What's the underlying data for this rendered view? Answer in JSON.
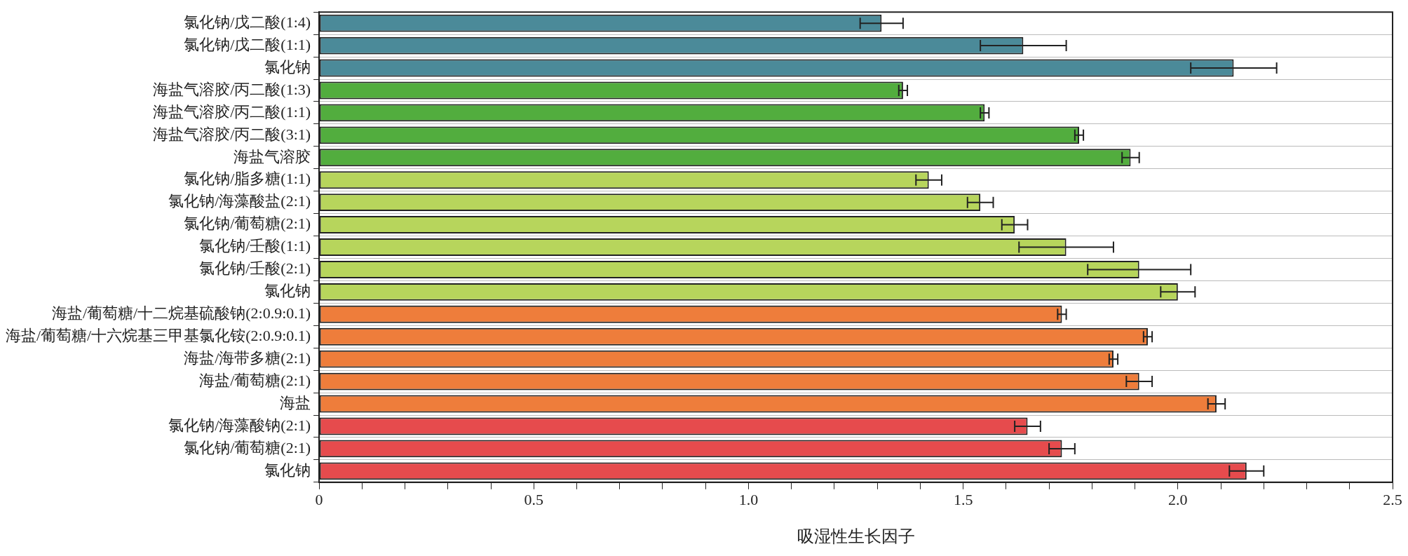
{
  "chart_data": {
    "type": "bar",
    "orientation": "horizontal",
    "xlabel": "吸湿性生长因子",
    "categories": [
      "氯化钠/戊二酸(1:4)",
      "氯化钠/戊二酸(1:1)",
      "氯化钠",
      "海盐气溶胶/丙二酸(1:3)",
      "海盐气溶胶/丙二酸(1:1)",
      "海盐气溶胶/丙二酸(3:1)",
      "海盐气溶胶",
      "氯化钠/脂多糖(1:1)",
      "氯化钠/海藻酸盐(2:1)",
      "氯化钠/葡萄糖(2:1)",
      "氯化钠/壬酸(1:1)",
      "氯化钠/壬酸(2:1)",
      "氯化钠",
      "海盐/葡萄糖/十二烷基硫酸钠(2:0.9:0.1)",
      "海盐/葡萄糖/十六烷基三甲基氯化铵(2:0.9:0.1)",
      "海盐/海带多糖(2:1)",
      "海盐/葡萄糖(2:1)",
      "海盐",
      "氯化钠/海藻酸钠(2:1)",
      "氯化钠/葡萄糖(2:1)",
      "氯化钠"
    ],
    "values": [
      1.31,
      1.64,
      2.13,
      1.36,
      1.55,
      1.77,
      1.89,
      1.42,
      1.54,
      1.62,
      1.74,
      1.91,
      2.0,
      1.73,
      1.93,
      1.85,
      1.91,
      2.09,
      1.65,
      1.73,
      2.16
    ],
    "errors": [
      0.05,
      0.1,
      0.1,
      0.01,
      0.01,
      0.01,
      0.02,
      0.03,
      0.03,
      0.03,
      0.11,
      0.12,
      0.04,
      0.01,
      0.01,
      0.01,
      0.03,
      0.02,
      0.03,
      0.03,
      0.04
    ],
    "colors": [
      "#4b8a99",
      "#4b8a99",
      "#4b8a99",
      "#52ad3e",
      "#52ad3e",
      "#52ad3e",
      "#52ad3e",
      "#b7d55c",
      "#b7d55c",
      "#b7d55c",
      "#b7d55c",
      "#b7d55c",
      "#b7d55c",
      "#ee7d3b",
      "#ee7d3b",
      "#ee7d3b",
      "#ee7d3b",
      "#ee7d3b",
      "#e64b4d",
      "#e64b4d",
      "#e64b4d"
    ],
    "xlim": [
      0,
      2.5
    ],
    "xticks": [
      0,
      {
        "value": 0.1,
        "label": null
      },
      {
        "value": 0.2,
        "label": null
      },
      {
        "value": 0.3,
        "label": null
      },
      {
        "value": 0.4,
        "label": null
      },
      {
        "value": 0.5,
        "label": "0.5"
      },
      {
        "value": 0.6,
        "label": null
      },
      {
        "value": 0.7,
        "label": null
      },
      {
        "value": 0.8,
        "label": null
      },
      {
        "value": 0.9,
        "label": null
      },
      {
        "value": 1.0,
        "label": "1.0"
      },
      {
        "value": 1.1,
        "label": null
      },
      {
        "value": 1.2,
        "label": null
      },
      {
        "value": 1.3,
        "label": null
      },
      {
        "value": 1.4,
        "label": null
      },
      {
        "value": 1.5,
        "label": "1.5"
      },
      {
        "value": 1.6,
        "label": null
      },
      {
        "value": 1.7,
        "label": null
      },
      {
        "value": 1.8,
        "label": null
      },
      {
        "value": 1.9,
        "label": null
      },
      {
        "value": 2.0,
        "label": "2.0"
      },
      {
        "value": 2.1,
        "label": null
      },
      {
        "value": 2.2,
        "label": null
      },
      {
        "value": 2.3,
        "label": null
      },
      {
        "value": 2.4,
        "label": null
      },
      {
        "value": 2.5,
        "label": "2.5"
      }
    ],
    "grid": "y"
  }
}
